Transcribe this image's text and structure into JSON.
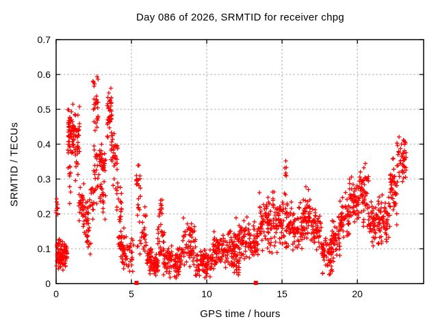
{
  "window": {
    "background": "#ffffff"
  },
  "chart_data": {
    "type": "scatter",
    "title": "Day 086 of 2026, SRMTID for receiver chpg",
    "xlabel": "GPS time / hours",
    "ylabel": "SRMTID / TECUs",
    "xlim": [
      0,
      24.4
    ],
    "ylim": [
      0,
      0.7
    ],
    "xticks": [
      0,
      5,
      10,
      15,
      20
    ],
    "xtick_labels": [
      "0",
      "5",
      "10",
      "15",
      "20"
    ],
    "yticks": [
      0,
      0.1,
      0.2,
      0.3,
      0.4,
      0.5,
      0.6,
      0.7
    ],
    "ytick_labels": [
      "0",
      "0.1",
      "0.2",
      "0.3",
      "0.4",
      "0.5",
      "0.6",
      "0.7"
    ],
    "grid": true,
    "grid_color": "#a8a8a8",
    "axis_color": "#000000",
    "legend_position": "none",
    "series": [
      {
        "name": "SRMTID",
        "marker": "plus",
        "color": "#ff0000",
        "cluster_fields": [
          "x_start_h",
          "x_end_h",
          "y_center",
          "y_sigma",
          "y_min",
          "y_max",
          "count"
        ],
        "clusters": [
          [
            0.0,
            0.12,
            0.22,
            0.018,
            0.19,
            0.248,
            9
          ],
          [
            0.02,
            0.75,
            0.085,
            0.02,
            0.035,
            0.132,
            95
          ],
          [
            0.78,
            1.15,
            0.44,
            0.04,
            0.33,
            0.535,
            55
          ],
          [
            0.8,
            1.0,
            0.3,
            0.04,
            0.21,
            0.38,
            10
          ],
          [
            1.15,
            1.55,
            0.42,
            0.05,
            0.28,
            0.51,
            45
          ],
          [
            1.5,
            1.85,
            0.22,
            0.04,
            0.15,
            0.33,
            30
          ],
          [
            1.85,
            2.15,
            0.19,
            0.025,
            0.14,
            0.25,
            22
          ],
          [
            2.0,
            2.3,
            0.13,
            0.025,
            0.08,
            0.18,
            15
          ],
          [
            2.2,
            2.5,
            0.25,
            0.035,
            0.18,
            0.31,
            16
          ],
          [
            2.45,
            2.8,
            0.5,
            0.055,
            0.38,
            0.61,
            30
          ],
          [
            2.5,
            2.85,
            0.33,
            0.05,
            0.22,
            0.43,
            20
          ],
          [
            2.85,
            3.3,
            0.36,
            0.025,
            0.3,
            0.4,
            30
          ],
          [
            2.85,
            3.3,
            0.25,
            0.03,
            0.18,
            0.3,
            20
          ],
          [
            3.4,
            3.7,
            0.48,
            0.04,
            0.41,
            0.585,
            35
          ],
          [
            3.65,
            4.1,
            0.36,
            0.05,
            0.26,
            0.47,
            35
          ],
          [
            4.0,
            4.35,
            0.22,
            0.03,
            0.16,
            0.3,
            18
          ],
          [
            4.1,
            4.6,
            0.12,
            0.03,
            0.06,
            0.19,
            25
          ],
          [
            4.35,
            5.15,
            0.08,
            0.025,
            0.03,
            0.155,
            45
          ],
          [
            5.3,
            5.6,
            0.28,
            0.03,
            0.21,
            0.34,
            20
          ],
          [
            5.4,
            6.05,
            0.15,
            0.04,
            0.06,
            0.29,
            30
          ],
          [
            6.0,
            6.45,
            0.07,
            0.02,
            0.025,
            0.12,
            35
          ],
          [
            6.45,
            6.8,
            0.05,
            0.015,
            0.02,
            0.09,
            40
          ],
          [
            6.8,
            7.05,
            0.225,
            0.02,
            0.19,
            0.265,
            12
          ],
          [
            6.75,
            7.2,
            0.12,
            0.03,
            0.06,
            0.19,
            25
          ],
          [
            7.1,
            8.35,
            0.06,
            0.022,
            0.015,
            0.12,
            100
          ],
          [
            8.35,
            9.25,
            0.11,
            0.03,
            0.04,
            0.2,
            65
          ],
          [
            9.25,
            10.35,
            0.055,
            0.02,
            0.015,
            0.105,
            85
          ],
          [
            10.35,
            11.35,
            0.095,
            0.025,
            0.04,
            0.16,
            80
          ],
          [
            11.35,
            12.3,
            0.11,
            0.03,
            0.04,
            0.22,
            70
          ],
          [
            11.7,
            12.15,
            0.06,
            0.02,
            0.02,
            0.1,
            25
          ],
          [
            12.3,
            13.45,
            0.12,
            0.03,
            0.04,
            0.2,
            90
          ],
          [
            13.5,
            14.5,
            0.17,
            0.04,
            0.08,
            0.3,
            85
          ],
          [
            14.5,
            15.35,
            0.17,
            0.04,
            0.08,
            0.28,
            65
          ],
          [
            15.15,
            15.3,
            0.32,
            0.02,
            0.29,
            0.355,
            6
          ],
          [
            15.35,
            16.35,
            0.165,
            0.03,
            0.09,
            0.25,
            75
          ],
          [
            16.35,
            17.0,
            0.19,
            0.035,
            0.12,
            0.285,
            55
          ],
          [
            17.0,
            17.6,
            0.16,
            0.03,
            0.08,
            0.22,
            50
          ],
          [
            17.6,
            18.35,
            0.09,
            0.03,
            0.02,
            0.17,
            65
          ],
          [
            18.3,
            18.85,
            0.13,
            0.035,
            0.06,
            0.23,
            45
          ],
          [
            18.85,
            19.45,
            0.19,
            0.035,
            0.1,
            0.27,
            50
          ],
          [
            19.45,
            20.1,
            0.235,
            0.035,
            0.15,
            0.325,
            55
          ],
          [
            20.1,
            20.75,
            0.26,
            0.04,
            0.16,
            0.38,
            55
          ],
          [
            20.75,
            21.45,
            0.17,
            0.035,
            0.1,
            0.27,
            55
          ],
          [
            21.45,
            22.15,
            0.18,
            0.04,
            0.09,
            0.31,
            55
          ],
          [
            22.15,
            22.65,
            0.27,
            0.045,
            0.16,
            0.36,
            45
          ],
          [
            22.6,
            23.25,
            0.355,
            0.04,
            0.26,
            0.45,
            45
          ]
        ]
      }
    ],
    "extra_series": {
      "name": "axis squares",
      "marker": "filled-square",
      "color": "#ff0000",
      "points": [
        [
          5.34,
          0
        ],
        [
          13.26,
          0
        ]
      ]
    }
  }
}
